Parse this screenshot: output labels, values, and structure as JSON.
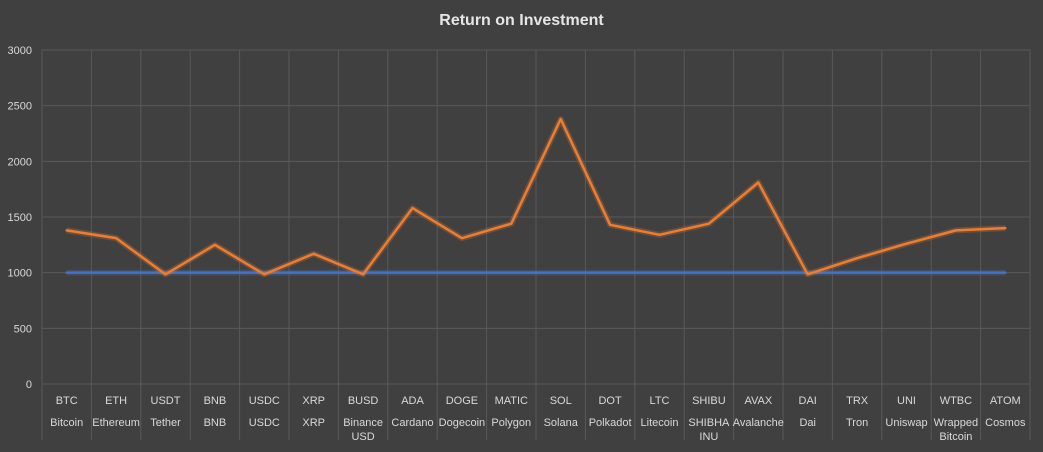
{
  "chart_data": {
    "type": "line",
    "title": "Return on Investment",
    "xlabel": "",
    "ylabel": "",
    "ylim": [
      0,
      3000
    ],
    "yticks": [
      0,
      500,
      1000,
      1500,
      2000,
      2500,
      3000
    ],
    "grid": true,
    "legend": "none",
    "categories": [
      {
        "symbol": "BTC",
        "name": "Bitcoin"
      },
      {
        "symbol": "ETH",
        "name": "Ethereum"
      },
      {
        "symbol": "USDT",
        "name": "Tether"
      },
      {
        "symbol": "BNB",
        "name": "BNB"
      },
      {
        "symbol": "USDC",
        "name": "USDC"
      },
      {
        "symbol": "XRP",
        "name": "XRP"
      },
      {
        "symbol": "BUSD",
        "name": "Binance USD"
      },
      {
        "symbol": "ADA",
        "name": "Cardano"
      },
      {
        "symbol": "DOGE",
        "name": "Dogecoin"
      },
      {
        "symbol": "MATIC",
        "name": "Polygon"
      },
      {
        "symbol": "SOL",
        "name": "Solana"
      },
      {
        "symbol": "DOT",
        "name": "Polkadot"
      },
      {
        "symbol": "LTC",
        "name": "Litecoin"
      },
      {
        "symbol": "SHIBU",
        "name": "SHIBHA INU"
      },
      {
        "symbol": "AVAX",
        "name": "Avalanche"
      },
      {
        "symbol": "DAI",
        "name": "Dai"
      },
      {
        "symbol": "TRX",
        "name": "Tron"
      },
      {
        "symbol": "UNI",
        "name": "Uniswap"
      },
      {
        "symbol": "WTBC",
        "name": "Wrapped Bitcoin"
      },
      {
        "symbol": "ATOM",
        "name": "Cosmos"
      }
    ],
    "series": [
      {
        "color": "#4472c4",
        "values": [
          1000,
          1000,
          1000,
          1000,
          1000,
          1000,
          1000,
          1000,
          1000,
          1000,
          1000,
          1000,
          1000,
          1000,
          1000,
          1000,
          1000,
          1000,
          1000,
          1000
        ]
      },
      {
        "color": "#ed7d31",
        "values": [
          1380,
          1310,
          985,
          1250,
          985,
          1170,
          985,
          1580,
          1310,
          1440,
          2380,
          1430,
          1340,
          1440,
          1810,
          985,
          1130,
          1260,
          1380,
          1400
        ]
      }
    ]
  },
  "colors": {
    "background": "#404040",
    "grid": "#595959",
    "text": "#d9d9d9"
  }
}
